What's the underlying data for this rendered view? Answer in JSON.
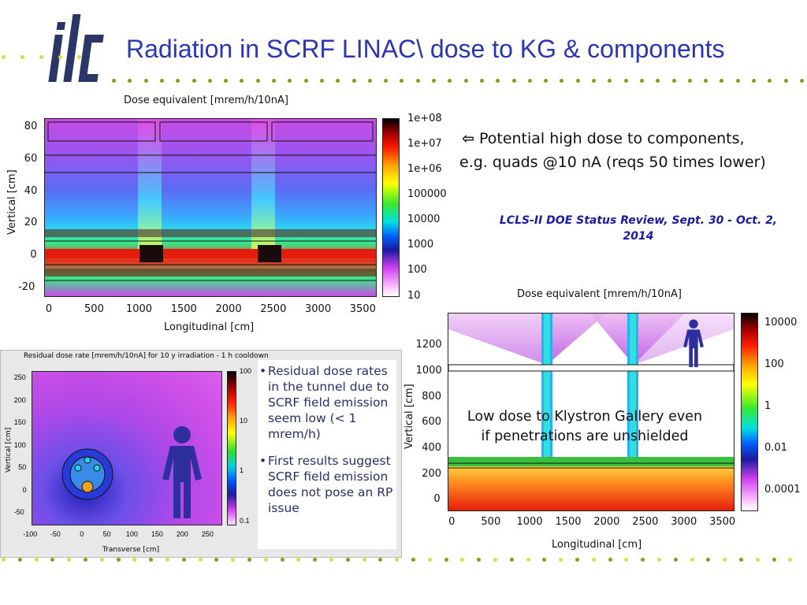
{
  "slide": {
    "title": "Radiation in SCRF LINAC\\ dose to KG & components",
    "logo_text": "ilc",
    "note_arrow": "⇦",
    "note_line1": "Potential high dose to components,",
    "note_line2": "e.g. quads @10 nA (reqs 50 times lower)",
    "review_line1": "LCLS-II DOE Status Review, Sept. 30 - Oct. 2,",
    "review_line2": "2014",
    "bullets": [
      "Residual dose rates in the tunnel due to SCRF field emission seem low (< 1 mrem/h)",
      "First results suggest SCRF field emission does not pose an RP issue"
    ],
    "kg_note_line1": "Low dose to Klystron Gallery even",
    "kg_note_line2": "if penetrations are unshielded",
    "colors": {
      "title": "#2a35b8",
      "review": "#1a1aa8",
      "dot_dark": "#8a9a1a",
      "dot_light": "#d4e04a"
    }
  },
  "chart_data": [
    {
      "type": "heatmap",
      "title": "Dose equivalent [mrem/h/10nA]",
      "xlabel": "Longitudinal [cm]",
      "ylabel": "Vertical [cm]",
      "x_ticks": [
        "0",
        "500",
        "1000",
        "1500",
        "2000",
        "2500",
        "3000",
        "3500"
      ],
      "y_ticks": [
        "80",
        "60",
        "40",
        "20",
        "0",
        "-20"
      ],
      "colorbar_ticks": [
        "1e+08",
        "1e+07",
        "1e+06",
        "100000",
        "10000",
        "1000",
        "100",
        "10"
      ],
      "xlim": [
        -50,
        3650
      ],
      "ylim": [
        -25,
        85
      ],
      "log_scale_colorbar": true
    },
    {
      "type": "heatmap",
      "title": "Dose equivalent [mrem/h/10nA]",
      "xlabel": "Longitudinal [cm]",
      "ylabel": "Vertical [cm]",
      "x_ticks": [
        "0",
        "500",
        "1000",
        "1500",
        "2000",
        "2500",
        "3000",
        "3500"
      ],
      "y_ticks": [
        "1200",
        "1000",
        "800",
        "600",
        "400",
        "200",
        "0"
      ],
      "colorbar_ticks": [
        "10000",
        "100",
        "1",
        "0.01",
        "0.0001"
      ],
      "xlim": [
        -50,
        3650
      ],
      "ylim": [
        -80,
        1450
      ],
      "log_scale_colorbar": true
    },
    {
      "type": "heatmap",
      "title": "Residual dose rate [mrem/h/10nA] for 10 y irradiation - 1 h cooldown",
      "xlabel": "Transverse [cm]",
      "ylabel": "Vertical [cm]",
      "x_ticks": [
        "-100",
        "-50",
        "0",
        "50",
        "100",
        "150",
        "200",
        "250"
      ],
      "y_ticks": [
        "250",
        "200",
        "150",
        "100",
        "50",
        "0",
        "-50"
      ],
      "colorbar_ticks": [
        "100",
        "10",
        "1",
        "0.1"
      ],
      "xlim": [
        -100,
        275
      ],
      "ylim": [
        -75,
        265
      ],
      "log_scale_colorbar": true
    }
  ]
}
